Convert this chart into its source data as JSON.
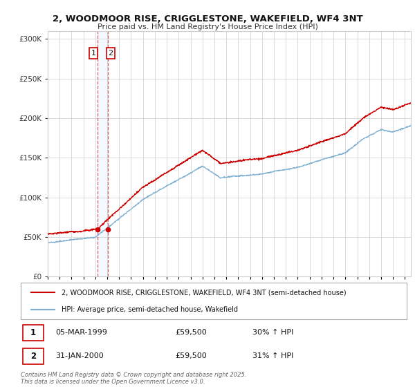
{
  "title_line1": "2, WOODMOOR RISE, CRIGGLESTONE, WAKEFIELD, WF4 3NT",
  "title_line2": "Price paid vs. HM Land Registry's House Price Index (HPI)",
  "legend_label1": "2, WOODMOOR RISE, CRIGGLESTONE, WAKEFIELD, WF4 3NT (semi-detached house)",
  "legend_label2": "HPI: Average price, semi-detached house, Wakefield",
  "table_rows": [
    {
      "num": "1",
      "date": "05-MAR-1999",
      "price": "£59,500",
      "hpi": "30% ↑ HPI"
    },
    {
      "num": "2",
      "date": "31-JAN-2000",
      "price": "£59,500",
      "hpi": "31% ↑ HPI"
    }
  ],
  "footnote": "Contains HM Land Registry data © Crown copyright and database right 2025.\nThis data is licensed under the Open Government Licence v3.0.",
  "purchase1_date": 1999.18,
  "purchase1_price": 59500,
  "purchase2_date": 2000.08,
  "purchase2_price": 59500,
  "vline1_date": 1999.18,
  "vline2_date": 2000.08,
  "line_color_property": "#cc0000",
  "line_color_hpi": "#7aadcf",
  "dot_color": "#cc0000",
  "vline_color": "#cc0000",
  "ylabel_color": "#333333",
  "grid_color": "#cccccc",
  "background_color": "#ffffff",
  "ylim": [
    0,
    310000
  ],
  "xlim_start": 1995.0,
  "xlim_end": 2025.5
}
